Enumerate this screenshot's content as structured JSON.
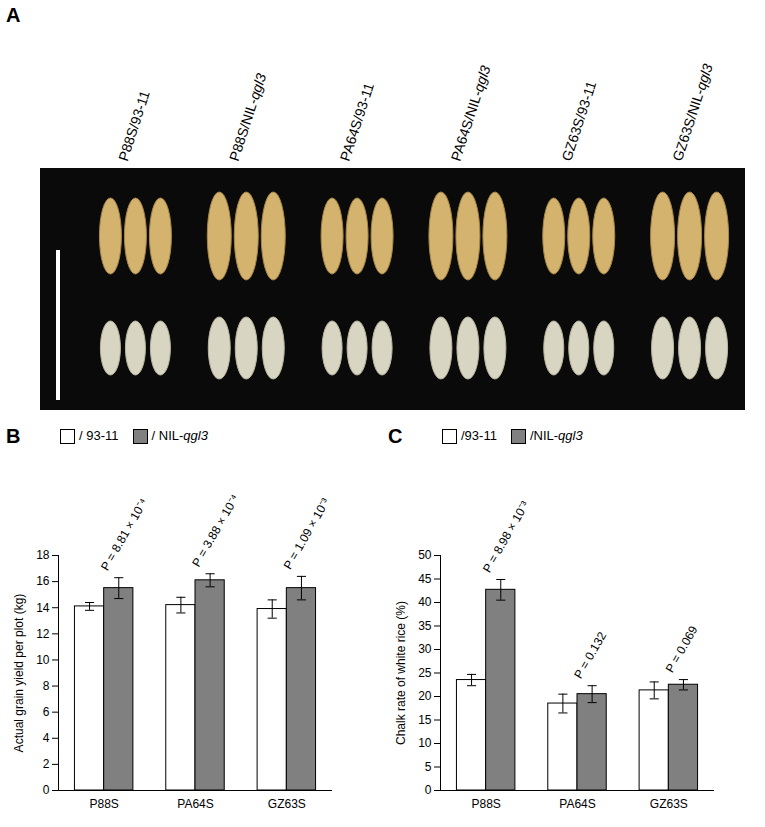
{
  "image": {
    "title": "A",
    "labels": [
      "P88S/93-11",
      "P88S/NIL-qgl3",
      "PA64S/93-11",
      "PA64S/NIL-qgl3",
      "GZ63S/93-11",
      "GZ63S/NIL-qgl3"
    ]
  },
  "chart_data": [
    {
      "type": "bar",
      "title": "B",
      "y_label": "Actual grain yield per plot (kg)",
      "categories": [
        "P88S",
        "PA64S",
        "GZ63S"
      ],
      "series": [
        {
          "name": "/ 93-11",
          "color": "#ffffff",
          "values": [
            14.1,
            14.2,
            13.9
          ],
          "errors": [
            0.3,
            0.6,
            0.7
          ]
        },
        {
          "name": "/ NIL-qgl3",
          "color": "#808080",
          "values": [
            15.5,
            16.1,
            15.5
          ],
          "errors": [
            0.8,
            0.5,
            0.9
          ]
        }
      ],
      "annotations": [
        {
          "category": "P88S",
          "text": "P = 8.81 × 10⁻⁴"
        },
        {
          "category": "PA64S",
          "text": "P = 3.88 × 10⁻⁴"
        },
        {
          "category": "GZ63S",
          "text": "P = 1.09 × 10⁻³"
        }
      ],
      "ylim": [
        0,
        18
      ],
      "yticks": [
        0,
        2,
        4,
        6,
        8,
        10,
        12,
        14,
        16,
        18
      ],
      "legend": "top",
      "grid": false
    },
    {
      "type": "bar",
      "title": "C",
      "y_label": "Chalk rate of white rice (%)",
      "categories": [
        "P88S",
        "PA64S",
        "GZ63S"
      ],
      "series": [
        {
          "name": "/93-11",
          "color": "#ffffff",
          "values": [
            23.5,
            18.5,
            21.3
          ],
          "errors": [
            1.2,
            2.0,
            1.8
          ]
        },
        {
          "name": "/NIL-qgl3",
          "color": "#808080",
          "values": [
            42.7,
            20.5,
            22.5
          ],
          "errors": [
            2.2,
            1.8,
            1.1
          ]
        }
      ],
      "annotations": [
        {
          "category": "P88S",
          "text": "P = 8.98 × 10⁻³"
        },
        {
          "category": "PA64S",
          "text": "P = 0.132"
        },
        {
          "category": "GZ63S",
          "text": "P = 0.069"
        }
      ],
      "ylim": [
        0,
        50
      ],
      "yticks": [
        0,
        5,
        10,
        15,
        20,
        25,
        30,
        35,
        40,
        45,
        50
      ],
      "legend": "top",
      "grid": false
    }
  ]
}
